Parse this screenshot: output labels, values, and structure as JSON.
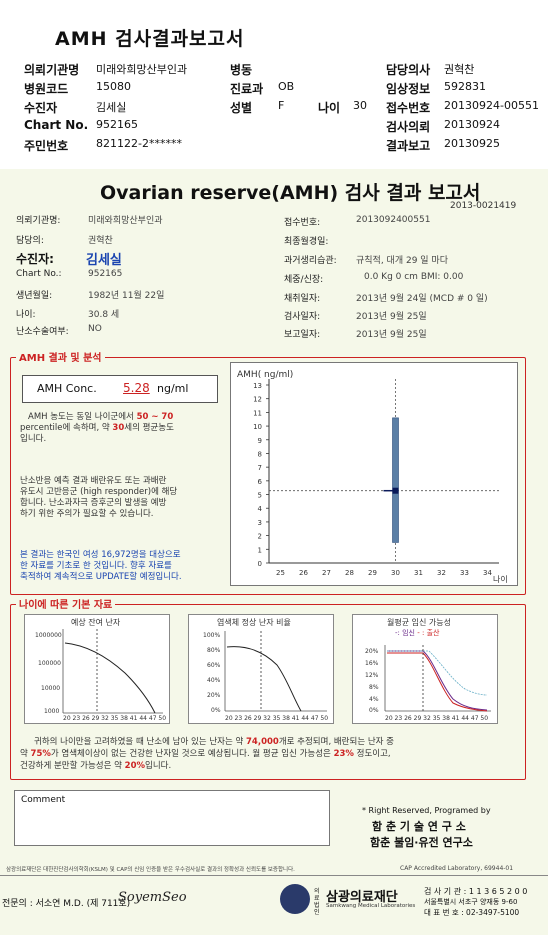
{
  "header": {
    "title": "AMH 검사결과보고서",
    "left": [
      {
        "label": "의뢰기관명",
        "value": "미래와희망산부인과"
      },
      {
        "label": "병원코드",
        "value": "15080"
      },
      {
        "label": "수진자",
        "value": "김세실"
      },
      {
        "label": "Chart No.",
        "value": "952165"
      },
      {
        "label": "주민번호",
        "value": "821122-2******"
      }
    ],
    "mid": [
      {
        "label": "병동",
        "value": ""
      },
      {
        "label": "진료과",
        "value": "OB"
      },
      {
        "label": "성별",
        "value": "F"
      }
    ],
    "age_label": "나이",
    "age_value": "30",
    "right": [
      {
        "label": "담당의사",
        "value": "권혁찬"
      },
      {
        "label": "임상정보",
        "value": "592831"
      },
      {
        "label": "접수번호",
        "value": "20130924-00551"
      },
      {
        "label": "",
        "value": ""
      },
      {
        "label": "검사의뢰",
        "value": "20130924"
      },
      {
        "label": "결과보고",
        "value": "20130925"
      }
    ]
  },
  "report": {
    "title": "Ovarian reserve(AMH) 검사 결과 보고서",
    "code": "2013-0021419",
    "left_rows": [
      {
        "label": "의뢰기관명:",
        "value": "미래와희망산부인과"
      },
      {
        "label": "담당의:",
        "value": "권혁찬"
      },
      {
        "label": "Chart No.:",
        "value": "952165"
      },
      {
        "label": "생년월일:",
        "value": "1982년 11월 22일"
      },
      {
        "label": "나이:",
        "value": "30.8 세"
      },
      {
        "label": "난소수술여부:",
        "value": "NO"
      }
    ],
    "patient_label": "수진자:",
    "patient_value": "김세실",
    "right_rows": [
      {
        "label": "접수번호:",
        "value": "2013092400551"
      },
      {
        "label": "최종월경일:",
        "value": ""
      },
      {
        "label": "과거생리습관:",
        "value": "규칙적, 대개   29 일 마다"
      },
      {
        "label": "체중/신장:",
        "value": "0.0 Kg      0 cm    BMI:   0.00"
      },
      {
        "label": "채취일자:",
        "value": "2013년 9월 24일   (MCD # 0 일)"
      },
      {
        "label": "검사일자:",
        "value": "2013년 9월 25일"
      },
      {
        "label": "보고일자:",
        "value": "2013년 9월 25일"
      }
    ]
  },
  "amh_section": {
    "title": "AMH 결과 및 분석",
    "conc_label": "AMH Conc.",
    "conc_value": "5.28",
    "conc_unit": "ng/ml",
    "p1a": "AMH 농도는 동일 나이군에서",
    "p1_range": "50 ~  70",
    "p1b": "percentile에 속하며, 약",
    "p1_age": "30",
    "p1c": "세의 평균농도",
    "p1d": "입니다.",
    "p2": [
      "난소반응 예측 결과 배란유도 또는 과배란",
      "유도시 고반응군 (high responder)에 해당",
      "합니다. 난소과자극 증후군의 발생을 예방",
      "하기 위한 주의가 필요할 수 있습니다."
    ],
    "p3": [
      "본 결과는 한국인 여성 16,972명을 대상으로",
      "한 자료를 기초로 한 것입니다. 향후 자료를",
      "축적하여 계속적으로 UPDATE할 예정입니다."
    ]
  },
  "chart_data": {
    "type": "scatter",
    "title": "AMH( ng/ml)",
    "xlabel": "나이",
    "x_ticks": [
      25,
      26,
      27,
      28,
      29,
      30,
      31,
      32,
      33,
      34
    ],
    "y_ticks": [
      0,
      1,
      2,
      3,
      4,
      5,
      6,
      7,
      8,
      9,
      10,
      11,
      12,
      13
    ],
    "ylim": [
      0,
      13
    ],
    "range_bar": {
      "x": 30,
      "low": 1.5,
      "high": 10.6
    },
    "point": {
      "x": 30,
      "y": 5.28
    }
  },
  "age_section": {
    "title": "나이에 따른 기본 자료",
    "chart1_title": "예상 잔여 난자",
    "chart1_y": [
      "1000000",
      "100000",
      "10000",
      "1000"
    ],
    "chart2_title": "염색체 정상 난자 비율",
    "chart2_y": [
      "100%",
      "80%",
      "60%",
      "40%",
      "20%",
      "0%"
    ],
    "chart3_title": "월평균 임신 가능성",
    "chart3_legend_a": "-: 임신",
    "chart3_legend_b": "- : 출산",
    "chart3_y": [
      "20%",
      "16%",
      "12%",
      "8%",
      "4%",
      "0%"
    ],
    "x_axis": "20 23 26 29 32 35 38 41 44 47 50",
    "s1": "귀하의 나이만을 고려하였을 때 난소에 남아 있는 난자는 약",
    "s1_val": "74,000",
    "s1b": "개로 추정되며, 배란되는 난자 중",
    "s2a": "약",
    "s2_val": "75%",
    "s2b": "가 염색체이상이 없는 건강한 난자일 것으로 예상됩니다. 월 평균 임신 가능성은",
    "s2_val2": "23%",
    "s2c": "정도이고,",
    "s3a": "건강하게 분만할 가능성은 약",
    "s3_val": "20%",
    "s3b": "입니다."
  },
  "footer": {
    "comment": "Comment",
    "rights": "* Right Reserved, Programed by",
    "org1": "함 춘  기 술  연 구 소",
    "org2": "함춘 불임·유전 연구소",
    "note": "삼광의료재단은 대한진단검사의학회(KSLM) 및 CAP의 신임 인증을 받은 우수검사실로 결과의 정확성과 신뢰도를 보증합니다.",
    "cap": "CAP  Accredited  Laboratory,  69944-01",
    "doctor": "전문의 : 서소연 M.D. (제 711호)",
    "signature": "SoyemSeo",
    "logo_small": "의료법인",
    "logo_name": "삼광의료재단",
    "logo_en": "Samkwang Medical Laboratories",
    "contact1": "검 사 기 관 : 1 1 3 6 5 2 0 0",
    "contact2": "서울특별시 서초구 양재동 9-60",
    "contact3": "대 표 번 호 : 02-3497-5100"
  }
}
